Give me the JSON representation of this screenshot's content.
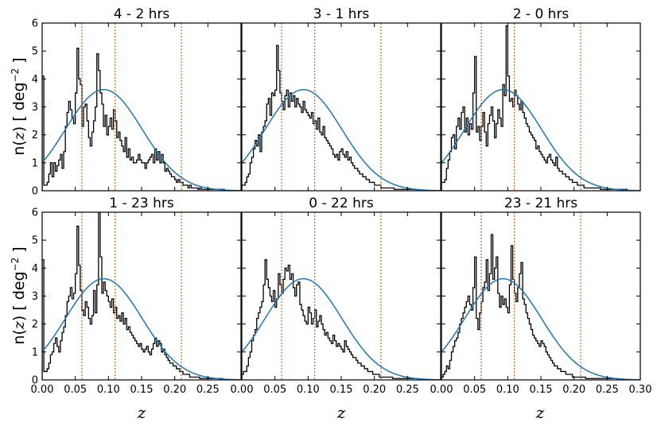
{
  "figure": {
    "xlabel": "z",
    "ylabel_prefix": "n(",
    "ylabel_var": "z",
    "ylabel_suffix": ") [ deg",
    "ylabel_exp": "−2",
    "ylabel_end": " ]",
    "colors": {
      "model": "#1f77b4",
      "vline": "#d2691e",
      "hist": "#000000"
    },
    "x_ticks": [
      "0.00",
      "0.05",
      "0.10",
      "0.15",
      "0.20",
      "0.25",
      "0.30"
    ],
    "x_ticks_short": [
      "0.00",
      "0.05",
      "0.10",
      "0.15",
      "0.20",
      "0.25"
    ],
    "y_ticks": [
      "0",
      "1",
      "2",
      "3",
      "4",
      "5",
      "6"
    ]
  },
  "chart_data": [
    {
      "type": "histogram+line",
      "title": "4 -  2 hrs",
      "xlim": [
        0.0,
        0.3
      ],
      "ylim": [
        0,
        6
      ],
      "vlines": [
        0.06,
        0.11,
        0.21
      ],
      "bin_width": 0.0025,
      "hist": [
        4.1,
        0.2,
        0.2,
        0.3,
        0.6,
        1.0,
        0.5,
        1.0,
        0.7,
        0.9,
        1.1,
        1.3,
        0.8,
        1.4,
        2.3,
        2.8,
        3.2,
        2.9,
        2.6,
        2.4,
        3.5,
        5.1,
        4.0,
        3.8,
        2.3,
        3.0,
        3.1,
        2.5,
        1.9,
        1.6,
        2.1,
        2.5,
        3.0,
        4.9,
        4.3,
        3.5,
        3.1,
        2.3,
        2.7,
        2.0,
        2.3,
        2.6,
        2.2,
        2.9,
        2.5,
        1.9,
        2.1,
        1.8,
        1.6,
        1.4,
        1.9,
        1.2,
        1.5,
        1.1,
        1.2,
        1.0,
        1.0,
        1.1,
        1.3,
        1.1,
        1.0,
        1.0,
        0.8,
        1.0,
        1.1,
        1.2,
        1.3,
        1.0,
        1.5,
        1.1,
        1.4,
        1.0,
        1.3,
        1.0,
        0.7,
        0.8,
        0.7,
        0.6,
        0.5,
        0.5,
        0.4,
        0.3,
        0.4,
        0.3,
        0.3,
        0.2,
        0.2,
        0.2,
        0.1,
        0.2,
        0.1,
        0.1,
        0.1,
        0.1,
        0.05,
        0.1,
        0.05,
        0.05,
        0.05,
        0.05,
        0.05,
        0.05,
        0.05,
        0.05,
        0.05,
        0.05,
        0.05,
        0.05,
        0.05,
        0.05,
        0.0,
        0.0,
        0.0,
        0.0,
        0.0,
        0.0,
        0.0,
        0.0,
        0.0,
        0.0
      ]
    },
    {
      "type": "histogram+line",
      "title": "3 -  1 hrs",
      "xlim": [
        0.0,
        0.3
      ],
      "ylim": [
        0,
        6
      ],
      "vlines": [
        0.06,
        0.11,
        0.21
      ],
      "bin_width": 0.0025,
      "hist": [
        0.2,
        0.2,
        0.3,
        0.5,
        0.6,
        1.0,
        1.2,
        1.5,
        1.8,
        1.6,
        2.0,
        1.4,
        2.1,
        2.3,
        2.5,
        3.1,
        3.3,
        2.7,
        3.5,
        3.4,
        3.6,
        5.2,
        4.3,
        3.5,
        3.2,
        2.9,
        3.4,
        3.6,
        3.0,
        3.5,
        3.2,
        3.4,
        3.0,
        3.3,
        3.1,
        3.0,
        2.8,
        3.2,
        2.9,
        2.8,
        2.7,
        2.6,
        2.8,
        2.4,
        2.5,
        2.2,
        2.6,
        2.1,
        2.0,
        2.3,
        1.9,
        1.8,
        1.7,
        1.6,
        1.5,
        1.3,
        1.2,
        1.3,
        1.1,
        1.4,
        1.5,
        1.3,
        1.2,
        1.4,
        1.1,
        1.2,
        1.0,
        0.9,
        0.8,
        0.8,
        0.7,
        0.6,
        0.6,
        0.5,
        0.5,
        0.4,
        0.4,
        0.3,
        0.3,
        0.3,
        0.2,
        0.2,
        0.2,
        0.2,
        0.1,
        0.1,
        0.1,
        0.1,
        0.1,
        0.1,
        0.1,
        0.1,
        0.05,
        0.05,
        0.05,
        0.05,
        0.05,
        0.05,
        0.05,
        0.05,
        0.05,
        0.05,
        0.05,
        0.05,
        0.05,
        0.0,
        0.0,
        0.0,
        0.0,
        0.0,
        0.0,
        0.0,
        0.0,
        0.0,
        0.0,
        0.0,
        0.0,
        0.0,
        0.0,
        0.0
      ]
    },
    {
      "type": "histogram+line",
      "title": "2 -  0 hrs",
      "xlim": [
        0.0,
        0.3
      ],
      "ylim": [
        0,
        6
      ],
      "vlines": [
        0.06,
        0.11,
        0.21
      ],
      "bin_width": 0.0025,
      "hist": [
        0.3,
        0.3,
        0.4,
        0.8,
        1.1,
        1.4,
        1.9,
        2.0,
        1.5,
        2.3,
        2.6,
        2.2,
        2.8,
        3.0,
        2.1,
        2.6,
        2.0,
        2.4,
        2.2,
        3.5,
        4.8,
        2.1,
        2.3,
        1.8,
        2.3,
        2.8,
        2.1,
        1.6,
        2.4,
        2.7,
        3.0,
        2.5,
        1.9,
        2.4,
        2.9,
        2.6,
        2.3,
        3.8,
        3.4,
        5.9,
        4.1,
        3.2,
        3.3,
        3.0,
        3.6,
        3.4,
        3.1,
        2.9,
        3.2,
        2.8,
        2.6,
        2.4,
        2.3,
        2.1,
        2.0,
        1.9,
        1.8,
        1.5,
        1.6,
        1.4,
        1.3,
        1.2,
        1.1,
        1.0,
        1.2,
        1.3,
        1.1,
        1.0,
        0.9,
        1.2,
        0.8,
        0.7,
        0.7,
        0.6,
        0.6,
        0.5,
        0.5,
        0.4,
        0.4,
        0.3,
        0.3,
        0.3,
        0.2,
        0.2,
        0.2,
        0.2,
        0.1,
        0.1,
        0.1,
        0.1,
        0.1,
        0.1,
        0.1,
        0.1,
        0.1,
        0.1,
        0.05,
        0.05,
        0.05,
        0.05,
        0.05,
        0.05,
        0.05,
        0.05,
        0.05,
        0.05,
        0.05,
        0.05,
        0.05,
        0.05,
        0.05,
        0.05,
        0.0,
        0.0,
        0.0,
        0.0,
        0.0,
        0.0,
        0.0,
        0.0
      ]
    },
    {
      "type": "histogram+line",
      "title": "1 - 23 hrs",
      "xlim": [
        0.0,
        0.3
      ],
      "ylim": [
        0,
        6
      ],
      "vlines": [
        0.06,
        0.11,
        0.21
      ],
      "bin_width": 0.0025,
      "hist": [
        4.3,
        0.3,
        0.3,
        0.4,
        0.6,
        0.9,
        1.0,
        1.3,
        1.5,
        1.2,
        1.0,
        1.4,
        1.7,
        1.9,
        2.3,
        2.8,
        3.0,
        3.3,
        2.9,
        3.1,
        3.8,
        5.5,
        4.1,
        3.2,
        2.5,
        2.3,
        2.8,
        2.6,
        2.2,
        2.0,
        2.3,
        3.2,
        2.4,
        3.4,
        6.0,
        4.4,
        3.1,
        3.5,
        3.2,
        3.0,
        2.8,
        2.6,
        2.9,
        2.4,
        2.6,
        2.2,
        2.3,
        2.1,
        2.4,
        2.0,
        2.2,
        1.8,
        1.9,
        1.7,
        1.6,
        1.5,
        1.4,
        1.3,
        1.2,
        1.3,
        1.1,
        1.0,
        1.1,
        1.2,
        1.0,
        0.9,
        1.1,
        1.3,
        1.5,
        1.2,
        1.4,
        1.3,
        1.0,
        1.1,
        0.9,
        0.8,
        0.7,
        0.6,
        0.6,
        0.5,
        0.5,
        0.4,
        0.4,
        0.3,
        0.3,
        0.2,
        0.2,
        0.2,
        0.2,
        0.1,
        0.1,
        0.1,
        0.1,
        0.1,
        0.1,
        0.05,
        0.05,
        0.05,
        0.05,
        0.05,
        0.05,
        0.05,
        0.05,
        0.05,
        0.05,
        0.05,
        0.05,
        0.05,
        0.05,
        0.0,
        0.0,
        0.0,
        0.0,
        0.0,
        0.0,
        0.0,
        0.0,
        0.0,
        0.0,
        0.0
      ]
    },
    {
      "type": "histogram+line",
      "title": "0 - 22 hrs",
      "xlim": [
        0.0,
        0.3
      ],
      "ylim": [
        0,
        6
      ],
      "vlines": [
        0.06,
        0.11,
        0.21
      ],
      "bin_width": 0.0025,
      "hist": [
        0.2,
        0.3,
        0.3,
        0.5,
        0.8,
        1.0,
        1.4,
        1.6,
        1.8,
        2.2,
        2.4,
        2.6,
        2.8,
        3.4,
        4.3,
        3.6,
        3.3,
        3.0,
        2.8,
        3.2,
        2.6,
        2.9,
        3.8,
        3.4,
        3.1,
        3.6,
        4.0,
        3.9,
        4.1,
        3.6,
        3.8,
        3.3,
        3.0,
        3.4,
        3.5,
        2.7,
        2.5,
        2.3,
        2.1,
        2.0,
        2.6,
        2.4,
        2.0,
        2.2,
        2.5,
        1.9,
        2.1,
        2.3,
        2.0,
        1.8,
        1.6,
        1.7,
        1.5,
        1.4,
        1.3,
        1.6,
        1.4,
        1.2,
        1.3,
        1.2,
        1.1,
        1.0,
        1.4,
        1.2,
        1.1,
        1.0,
        0.9,
        0.8,
        0.8,
        0.7,
        0.6,
        0.6,
        0.5,
        0.5,
        0.4,
        0.4,
        0.3,
        0.3,
        0.3,
        0.2,
        0.2,
        0.2,
        0.2,
        0.1,
        0.1,
        0.1,
        0.1,
        0.1,
        0.1,
        0.1,
        0.1,
        0.05,
        0.05,
        0.05,
        0.05,
        0.05,
        0.05,
        0.05,
        0.05,
        0.05,
        0.05,
        0.05,
        0.05,
        0.05,
        0.05,
        0.05,
        0.0,
        0.0,
        0.0,
        0.0,
        0.0,
        0.0,
        0.0,
        0.0,
        0.0,
        0.0,
        0.0,
        0.0,
        0.0,
        0.0
      ]
    },
    {
      "type": "histogram+line",
      "title": "23 - 21 hrs",
      "xlim": [
        0.0,
        0.3
      ],
      "ylim": [
        0,
        6
      ],
      "vlines": [
        0.06,
        0.11,
        0.21
      ],
      "bin_width": 0.0025,
      "hist": [
        0.1,
        0.2,
        0.3,
        0.5,
        0.4,
        0.7,
        1.0,
        1.2,
        1.4,
        1.5,
        1.7,
        2.0,
        2.2,
        2.4,
        2.6,
        2.8,
        3.0,
        2.7,
        2.5,
        3.3,
        4.4,
        2.2,
        1.8,
        2.4,
        2.8,
        3.3,
        3.5,
        4.3,
        3.2,
        3.8,
        5.2,
        3.6,
        4.0,
        4.4,
        3.1,
        2.6,
        3.0,
        2.7,
        2.9,
        2.6,
        2.4,
        3.4,
        4.8,
        3.6,
        3.1,
        2.8,
        3.3,
        3.8,
        4.2,
        2.9,
        2.7,
        2.4,
        2.2,
        2.0,
        1.8,
        1.6,
        1.5,
        1.4,
        1.3,
        1.2,
        1.4,
        1.3,
        1.2,
        1.0,
        0.9,
        0.8,
        0.7,
        0.6,
        0.5,
        0.5,
        0.4,
        0.4,
        0.3,
        0.3,
        0.3,
        0.2,
        0.2,
        0.2,
        0.2,
        0.1,
        0.1,
        0.1,
        0.1,
        0.1,
        0.1,
        0.1,
        0.1,
        0.05,
        0.05,
        0.05,
        0.05,
        0.05,
        0.05,
        0.05,
        0.05,
        0.05,
        0.05,
        0.05,
        0.05,
        0.05,
        0.05,
        0.05,
        0.05,
        0.05,
        0.05,
        0.05,
        0.0,
        0.0,
        0.0,
        0.0,
        0.0,
        0.0,
        0.0,
        0.0,
        0.0,
        0.0,
        0.0,
        0.0,
        0.0,
        0.0
      ]
    }
  ]
}
